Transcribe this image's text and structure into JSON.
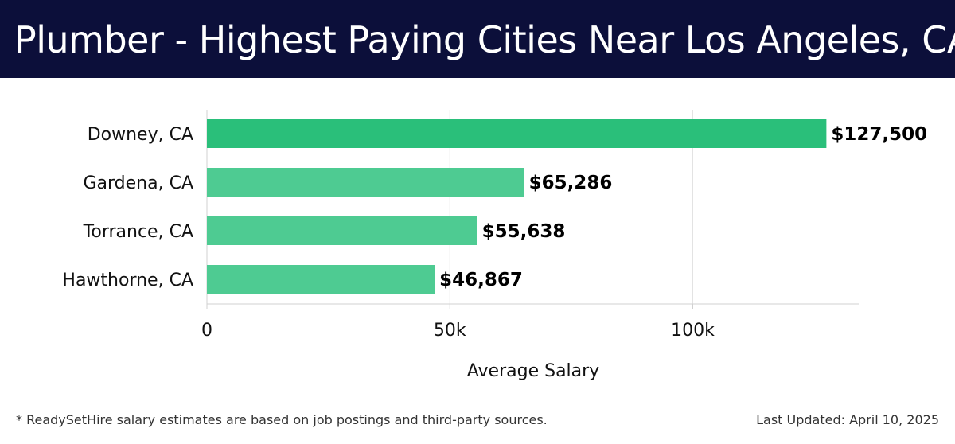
{
  "header": {
    "title": "Plumber - Highest Paying Cities Near Los Angeles, CA"
  },
  "footer": {
    "note": "* ReadySetHire salary estimates are based on job postings and third-party sources.",
    "updated": "Last Updated: April 10, 2025"
  },
  "colors": {
    "header_bg": "#0c0f3a",
    "top_bar": "#2abf7a",
    "other_bars": "#4ecb92"
  },
  "chart_data": {
    "type": "bar",
    "orientation": "horizontal",
    "categories": [
      "Downey, CA",
      "Gardena, CA",
      "Torrance, CA",
      "Hawthorne, CA"
    ],
    "values": [
      127500,
      65286,
      55638,
      46867
    ],
    "value_labels": [
      "$127,500",
      "$65,286",
      "$55,638",
      "$46,867"
    ],
    "xlabel": "Average Salary",
    "ylabel": "",
    "xlim": [
      0,
      134000
    ],
    "xticks": [
      0,
      50000,
      100000
    ],
    "xtick_labels": [
      "0",
      "50k",
      "100k"
    ],
    "grid": true,
    "legend": "none"
  }
}
